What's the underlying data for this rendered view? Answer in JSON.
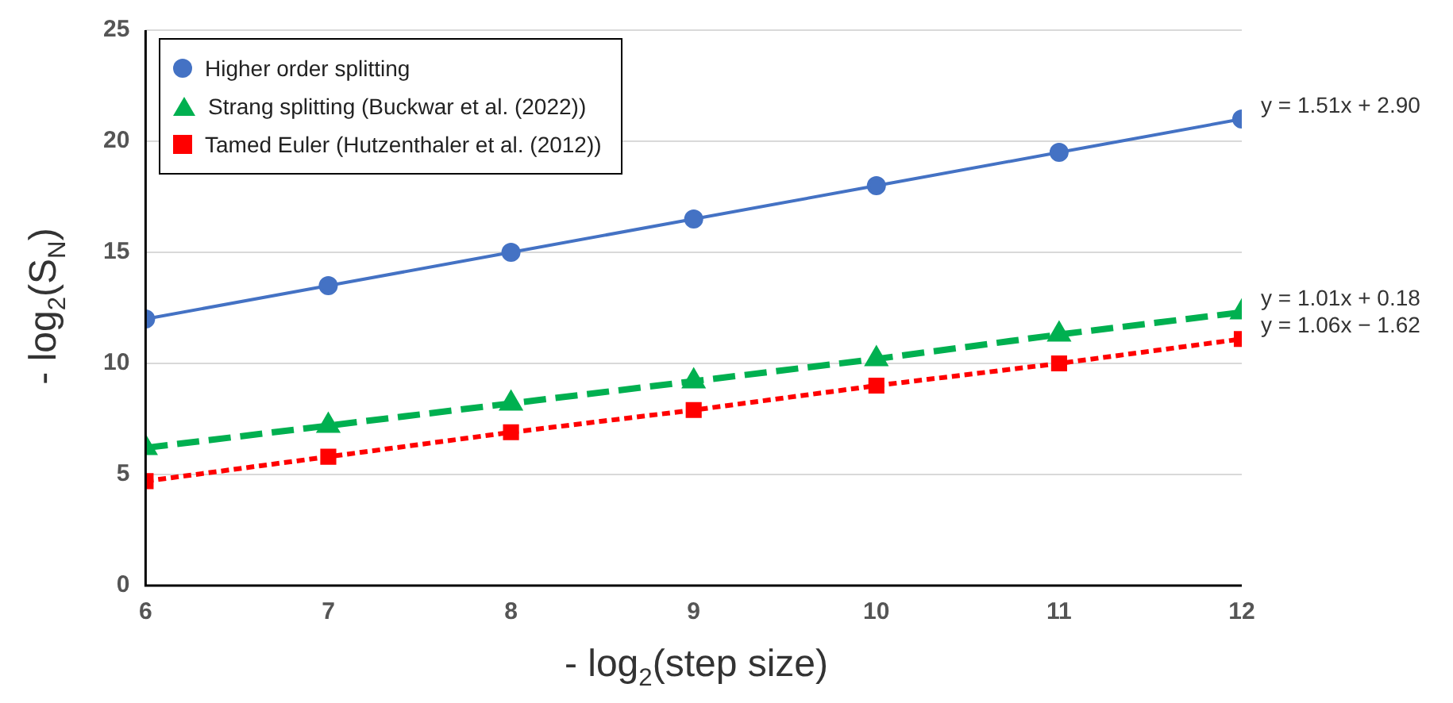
{
  "chart_data": {
    "type": "line",
    "xlabel": "- log$_{2}$(step size)",
    "ylabel": "- log$_{2}$(S$_{N}$)",
    "x": [
      6,
      7,
      8,
      9,
      10,
      11,
      12
    ],
    "series": [
      {
        "name": "Higher order splitting",
        "color": "#4472c4",
        "marker": "circle",
        "line_style": "solid",
        "values": [
          12,
          13.5,
          15,
          16.5,
          18,
          19.5,
          21
        ]
      },
      {
        "name": "Strang splitting (Buckwar et al. (2022))",
        "color": "#00b050",
        "marker": "triangle",
        "line_style": "dashed",
        "values": [
          6.2,
          7.2,
          8.2,
          9.2,
          10.2,
          11.3,
          12.3
        ]
      },
      {
        "name": "Tamed Euler (Hutzenthaler et al. (2012))",
        "color": "#ff0000",
        "marker": "square",
        "line_style": "dotted",
        "values": [
          4.7,
          5.8,
          6.9,
          7.9,
          9.0,
          10.0,
          11.1
        ]
      }
    ],
    "xlim": [
      6,
      12
    ],
    "xticks": [
      6,
      7,
      8,
      9,
      10,
      11,
      12
    ],
    "ylim": [
      0,
      25
    ],
    "yticks": [
      0,
      5,
      10,
      15,
      20,
      25
    ],
    "grid": "y",
    "legend": "top left",
    "annotations": [
      "y = 1.51x + 2.90",
      "y = 1.01x + 0.18",
      "y = 1.06x − 1.62"
    ]
  }
}
